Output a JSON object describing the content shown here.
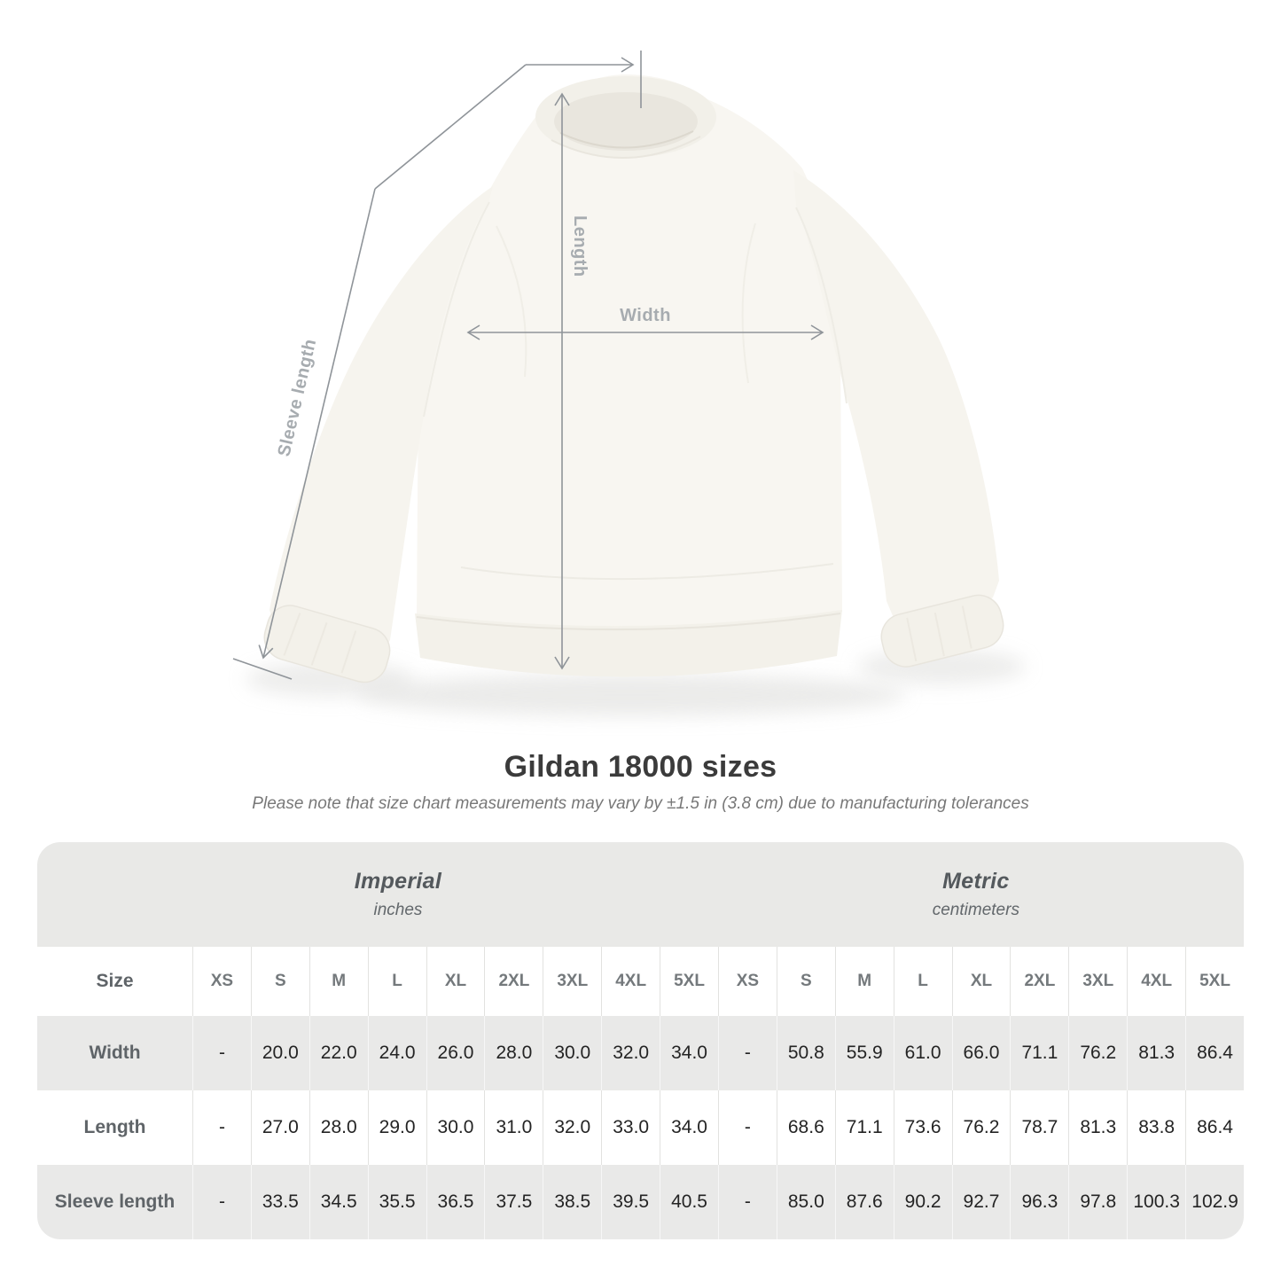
{
  "colors": {
    "annotation_line": "#8f9499",
    "annotation_label": "#a7acb0",
    "table_band": "#e9e9e7",
    "row_shade": "#e9e9e8",
    "value_text": "#242424",
    "label_text": "#5f6468",
    "size_header_text": "#74797c",
    "title_text": "#3b3b3b",
    "note_text": "#787878",
    "garment": "#f8f6f1"
  },
  "diagram": {
    "labels": {
      "length": "Length",
      "width": "Width",
      "sleeve_length": "Sleeve length"
    }
  },
  "chart_data": {
    "type": "table",
    "title": "Gildan 18000 sizes",
    "subtitle": "Please note that size chart measurements may vary by ±1.5 in (3.8 cm) due to manufacturing tolerances",
    "unit_groups": [
      {
        "name": "Imperial",
        "unit": "inches"
      },
      {
        "name": "Metric",
        "unit": "centimeters"
      }
    ],
    "size_label": "Size",
    "sizes": [
      "XS",
      "S",
      "M",
      "L",
      "XL",
      "2XL",
      "3XL",
      "4XL",
      "5XL"
    ],
    "rows": [
      {
        "label": "Width",
        "imperial": [
          "-",
          "20.0",
          "22.0",
          "24.0",
          "26.0",
          "28.0",
          "30.0",
          "32.0",
          "34.0"
        ],
        "metric": [
          "-",
          "50.8",
          "55.9",
          "61.0",
          "66.0",
          "71.1",
          "76.2",
          "81.3",
          "86.4"
        ]
      },
      {
        "label": "Length",
        "imperial": [
          "-",
          "27.0",
          "28.0",
          "29.0",
          "30.0",
          "31.0",
          "32.0",
          "33.0",
          "34.0"
        ],
        "metric": [
          "-",
          "68.6",
          "71.1",
          "73.6",
          "76.2",
          "78.7",
          "81.3",
          "83.8",
          "86.4"
        ]
      },
      {
        "label": "Sleeve length",
        "imperial": [
          "-",
          "33.5",
          "34.5",
          "35.5",
          "36.5",
          "37.5",
          "38.5",
          "39.5",
          "40.5"
        ],
        "metric": [
          "-",
          "85.0",
          "87.6",
          "90.2",
          "92.7",
          "96.3",
          "97.8",
          "100.3",
          "102.9"
        ]
      }
    ]
  }
}
